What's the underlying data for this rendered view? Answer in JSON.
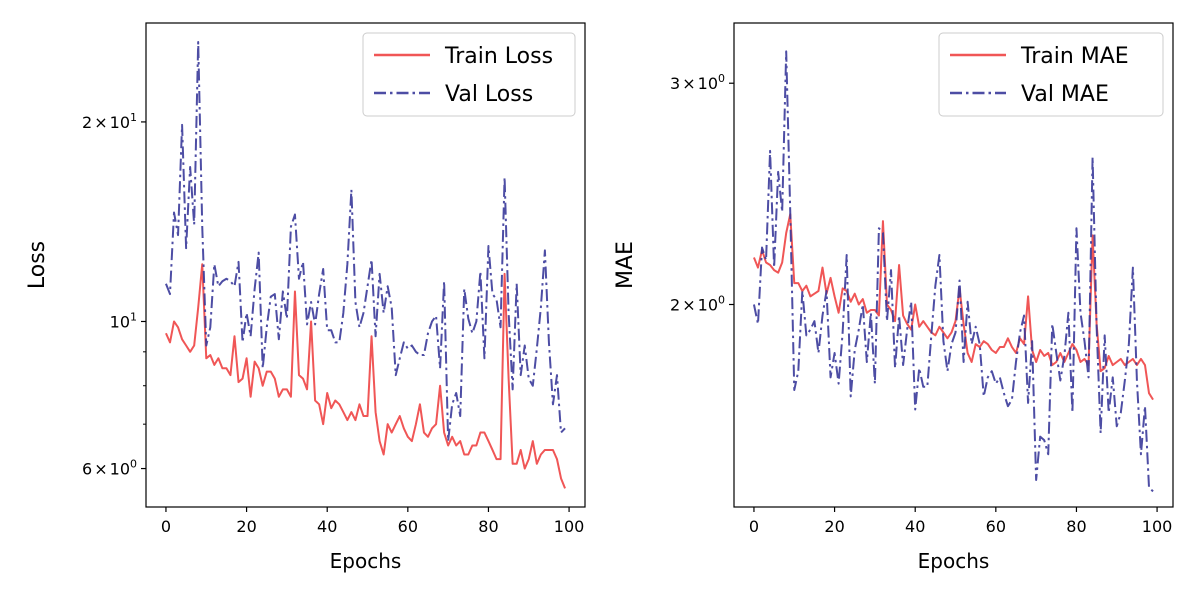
{
  "chart_data": [
    {
      "type": "line",
      "xlabel": "Epochs",
      "ylabel": "Loss",
      "yscale": "log",
      "xlim": [
        -4.95,
        103.95
      ],
      "ylim": [
        5.25,
        28.2
      ],
      "grid": false,
      "legend_position": "upper right",
      "x_ticks": [
        0,
        20,
        40,
        60,
        80,
        100
      ],
      "y_ticks": [
        {
          "value": 6,
          "mantissa": "6",
          "base": "10",
          "exp": "0"
        },
        {
          "value": 10,
          "mantissa": "",
          "base": "10",
          "exp": "1"
        },
        {
          "value": 20,
          "mantissa": "2",
          "base": "10",
          "exp": "1"
        }
      ],
      "y_minor_ticks": [
        7,
        8,
        9
      ],
      "series": [
        {
          "name": "Train Loss",
          "color": "#ee4444",
          "dash": "solid",
          "x_start": 0,
          "values": [
            9.6,
            9.3,
            10.0,
            9.8,
            9.4,
            9.2,
            9.0,
            9.2,
            10.5,
            12.2,
            8.8,
            8.9,
            8.6,
            8.8,
            8.5,
            8.5,
            8.3,
            9.5,
            8.1,
            8.2,
            8.8,
            7.7,
            8.7,
            8.5,
            8.0,
            8.4,
            8.4,
            8.2,
            7.7,
            7.9,
            7.9,
            7.7,
            11.1,
            8.3,
            8.2,
            7.9,
            10.0,
            7.6,
            7.5,
            7.0,
            7.8,
            7.4,
            7.6,
            7.5,
            7.3,
            7.1,
            7.3,
            7.1,
            7.5,
            7.2,
            7.2,
            9.5,
            7.3,
            6.6,
            6.3,
            7.0,
            6.8,
            7.0,
            7.2,
            6.9,
            6.7,
            6.6,
            7.0,
            7.5,
            6.8,
            6.7,
            6.9,
            7.0,
            8.0,
            6.8,
            6.5,
            6.7,
            6.5,
            6.6,
            6.3,
            6.3,
            6.5,
            6.5,
            6.8,
            6.8,
            6.6,
            6.4,
            6.2,
            6.2,
            11.8,
            8.2,
            6.1,
            6.1,
            6.4,
            6.0,
            6.2,
            6.6,
            6.1,
            6.3,
            6.4,
            6.4,
            6.4,
            6.2,
            5.8,
            5.6
          ]
        },
        {
          "name": "Val Loss",
          "color": "#3a3a9a",
          "dash": "dashdot",
          "x_start": 0,
          "values": [
            11.4,
            11.0,
            14.6,
            13.5,
            19.8,
            12.9,
            17.1,
            14.0,
            26.4,
            13.9,
            9.2,
            9.8,
            12.2,
            11.3,
            11.5,
            11.6,
            11.5,
            11.3,
            12.3,
            9.3,
            10.3,
            9.5,
            11.2,
            12.7,
            8.5,
            9.8,
            10.9,
            11.0,
            9.4,
            11.1,
            10.1,
            13.9,
            14.5,
            11.6,
            12.3,
            9.9,
            10.7,
            9.9,
            11.0,
            12.0,
            9.7,
            9.7,
            9.3,
            9.3,
            10.3,
            12.2,
            15.8,
            10.7,
            9.8,
            10.3,
            11.3,
            12.4,
            9.5,
            11.8,
            10.3,
            11.3,
            10.5,
            8.3,
            8.8,
            9.3,
            9.1,
            9.2,
            9.0,
            8.9,
            8.9,
            9.6,
            10.0,
            10.2,
            8.5,
            11.5,
            6.6,
            7.5,
            7.8,
            7.2,
            11.2,
            10.1,
            9.6,
            10.0,
            11.9,
            8.8,
            13.0,
            11.0,
            10.8,
            9.8,
            16.5,
            10.3,
            7.9,
            11.4,
            8.3,
            9.2,
            8.2,
            8.0,
            9.1,
            10.5,
            12.8,
            9.3,
            7.5,
            8.3,
            6.8,
            6.9
          ]
        }
      ]
    },
    {
      "type": "line",
      "xlabel": "Epochs",
      "ylabel": "MAE",
      "yscale": "log",
      "xlim": [
        -4.95,
        103.95
      ],
      "ylim": [
        1.38,
        3.35
      ],
      "grid": false,
      "legend_position": "upper right",
      "x_ticks": [
        0,
        20,
        40,
        60,
        80,
        100
      ],
      "y_ticks": [
        {
          "value": 2,
          "mantissa": "2",
          "base": "10",
          "exp": "0"
        },
        {
          "value": 3,
          "mantissa": "3",
          "base": "10",
          "exp": "0"
        }
      ],
      "y_minor_ticks": [],
      "series": [
        {
          "name": "Train MAE",
          "color": "#ee4444",
          "dash": "solid",
          "x_start": 0,
          "values": [
            2.18,
            2.14,
            2.21,
            2.16,
            2.15,
            2.13,
            2.12,
            2.16,
            2.28,
            2.36,
            2.08,
            2.08,
            2.05,
            2.07,
            2.03,
            2.04,
            2.05,
            2.14,
            2.04,
            2.1,
            2.03,
            1.97,
            2.06,
            2.05,
            2.01,
            2.04,
            2.0,
            2.02,
            1.97,
            1.98,
            1.98,
            1.96,
            2.33,
            2.0,
            1.98,
            1.94,
            2.15,
            1.96,
            1.93,
            1.91,
            2.0,
            1.92,
            1.94,
            1.92,
            1.9,
            1.89,
            1.92,
            1.9,
            1.88,
            1.9,
            1.94,
            2.06,
            1.93,
            1.83,
            1.8,
            1.86,
            1.85,
            1.87,
            1.86,
            1.84,
            1.83,
            1.85,
            1.85,
            1.88,
            1.85,
            1.83,
            1.88,
            1.86,
            2.03,
            1.84,
            1.8,
            1.84,
            1.82,
            1.83,
            1.79,
            1.8,
            1.83,
            1.8,
            1.83,
            1.86,
            1.84,
            1.8,
            1.81,
            1.79,
            2.27,
            1.93,
            1.77,
            1.78,
            1.82,
            1.79,
            1.8,
            1.81,
            1.79,
            1.8,
            1.81,
            1.79,
            1.81,
            1.79,
            1.7,
            1.68
          ]
        },
        {
          "name": "Val MAE",
          "color": "#3a3a9a",
          "dash": "dashdot",
          "x_start": 0,
          "values": [
            2.0,
            1.93,
            2.22,
            2.17,
            2.65,
            2.14,
            2.55,
            2.37,
            3.18,
            2.37,
            1.71,
            1.77,
            2.05,
            1.89,
            1.91,
            1.94,
            1.83,
            1.96,
            2.05,
            1.75,
            1.83,
            1.73,
            1.9,
            2.19,
            1.69,
            1.84,
            1.91,
            2.0,
            1.8,
            1.97,
            1.73,
            2.3,
            2.28,
            1.94,
            2.13,
            1.78,
            1.96,
            1.79,
            1.91,
            2.01,
            1.65,
            1.78,
            1.72,
            1.72,
            1.89,
            2.07,
            2.19,
            1.87,
            1.77,
            1.86,
            1.9,
            2.09,
            1.8,
            2.01,
            1.86,
            1.92,
            1.86,
            1.69,
            1.75,
            1.77,
            1.73,
            1.75,
            1.7,
            1.66,
            1.68,
            1.8,
            1.9,
            1.96,
            1.67,
            1.87,
            1.45,
            1.57,
            1.56,
            1.52,
            1.93,
            1.83,
            1.74,
            1.82,
            1.97,
            1.64,
            2.3,
            1.97,
            1.87,
            1.75,
            2.62,
            1.92,
            1.58,
            1.89,
            1.64,
            1.75,
            1.6,
            1.64,
            1.74,
            1.86,
            2.14,
            1.74,
            1.52,
            1.66,
            1.43,
            1.42
          ]
        }
      ]
    }
  ]
}
